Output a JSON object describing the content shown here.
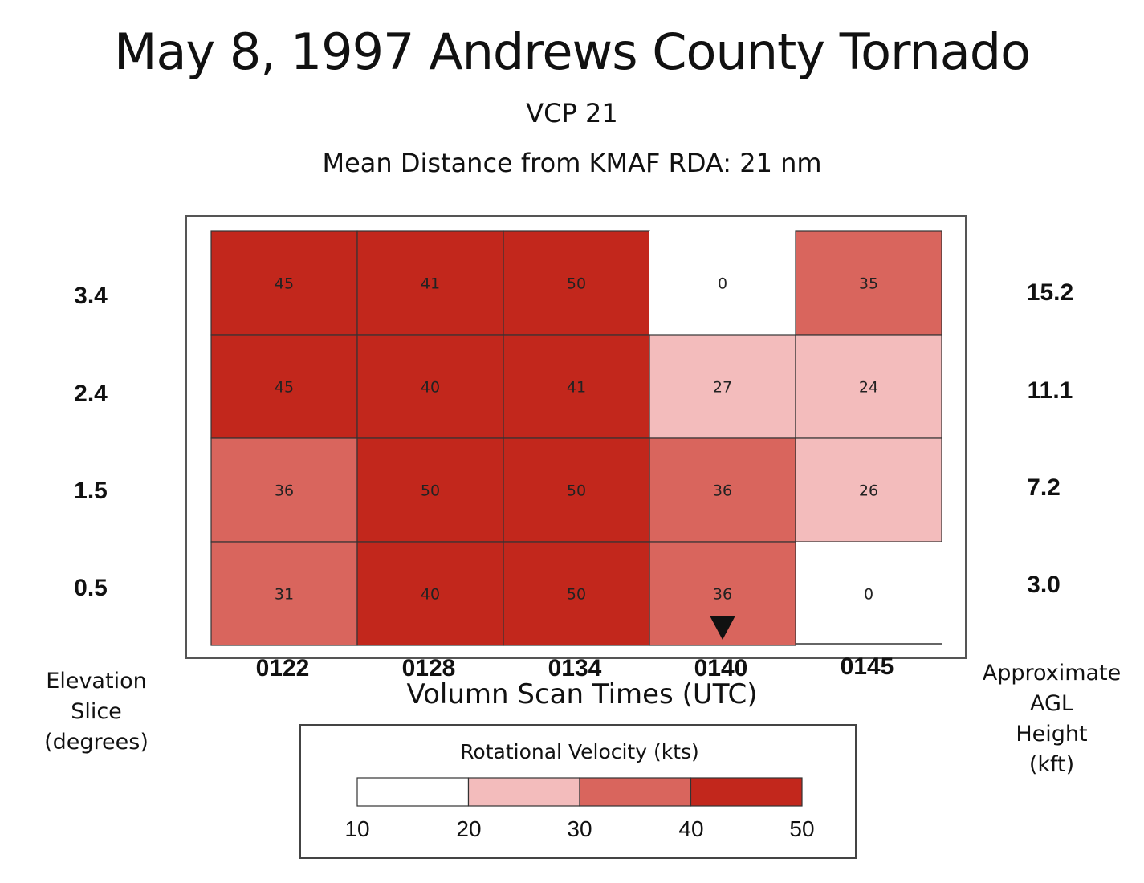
{
  "title": "May 8, 1997 Andrews County Tornado",
  "subtitle": "VCP 21",
  "distance": "Mean Distance from KMAF RDA:  21 nm",
  "left_axis_title": [
    "Elevation",
    "Slice",
    "(degrees)"
  ],
  "right_axis_title": [
    "Approximate",
    "AGL",
    "Height",
    "(kft)"
  ],
  "colors": {
    "bin_10_20": "#ffffff",
    "bin_20_30": "#f3bcbc",
    "bin_30_40": "#d9655d",
    "bin_40_50": "#c2271c",
    "grid_line": "#333333",
    "marker": "#111111"
  },
  "chart_data": {
    "type": "heatmap",
    "xlabel": "Volumn Scan Times (UTC)",
    "x": [
      "0122",
      "0128",
      "0134",
      "0140",
      "0145"
    ],
    "y": [
      "3.4",
      "2.4",
      "1.5",
      "0.5"
    ],
    "y_right": [
      "15.2",
      "11.1",
      "7.2",
      "3.0"
    ],
    "values": [
      [
        45,
        41,
        50,
        0,
        35
      ],
      [
        45,
        40,
        41,
        27,
        24
      ],
      [
        36,
        50,
        50,
        36,
        26
      ],
      [
        31,
        40,
        50,
        36,
        0
      ]
    ],
    "marker": {
      "x": "0140",
      "y": "0.5",
      "shape": "down-triangle"
    },
    "legend": {
      "title": "Rotational Velocity (kts)",
      "ticks": [
        "10",
        "20",
        "30",
        "40",
        "50"
      ],
      "bins": [
        [
          10,
          20
        ],
        [
          20,
          30
        ],
        [
          30,
          40
        ],
        [
          40,
          50
        ]
      ]
    }
  }
}
